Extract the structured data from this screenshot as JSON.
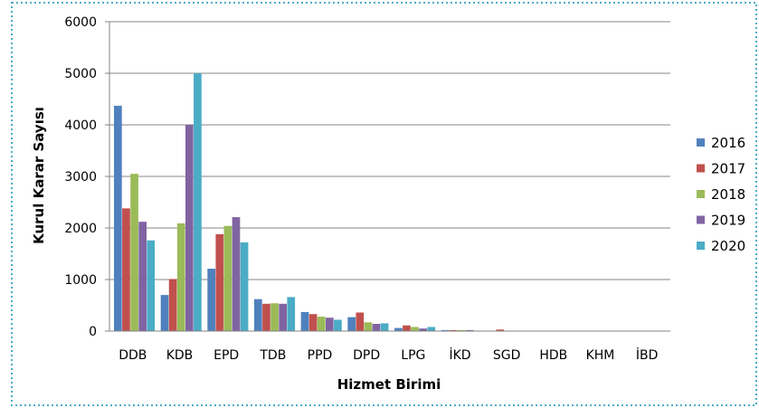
{
  "chart_data": {
    "type": "bar",
    "title": "",
    "xlabel": "Hizmet Birimi",
    "ylabel": "Kurul Karar Sayısı",
    "ylim": [
      0,
      6000
    ],
    "yticks": [
      "0",
      "1000",
      "2000",
      "3000",
      "4000",
      "5000",
      "6000"
    ],
    "grid": true,
    "legend_position": "right",
    "categories": [
      "DDB",
      "KDB",
      "EPD",
      "TDB",
      "PPD",
      "DPD",
      "LPG",
      "İKD",
      "SGD",
      "HDB",
      "KHM",
      "İBD"
    ],
    "series": [
      {
        "name": "2016",
        "color": "#4F81BD",
        "values": [
          4370,
          700,
          1210,
          620,
          370,
          270,
          60,
          20,
          0,
          0,
          0,
          0
        ]
      },
      {
        "name": "2017",
        "color": "#C0504D",
        "values": [
          2380,
          1010,
          1880,
          530,
          330,
          360,
          110,
          20,
          30,
          0,
          0,
          0
        ]
      },
      {
        "name": "2018",
        "color": "#9BBB59",
        "values": [
          3050,
          2090,
          2040,
          540,
          280,
          170,
          80,
          20,
          10,
          0,
          0,
          0
        ]
      },
      {
        "name": "2019",
        "color": "#8064A2",
        "values": [
          2120,
          4000,
          2210,
          530,
          260,
          140,
          50,
          20,
          0,
          0,
          0,
          0
        ]
      },
      {
        "name": "2020",
        "color": "#4BACC6",
        "values": [
          1760,
          5000,
          1720,
          660,
          220,
          150,
          80,
          10,
          0,
          0,
          0,
          0
        ]
      }
    ]
  },
  "frame": {
    "border_color": "#4BACC6",
    "gridline_color": "#868686",
    "axis_color": "#868686"
  }
}
